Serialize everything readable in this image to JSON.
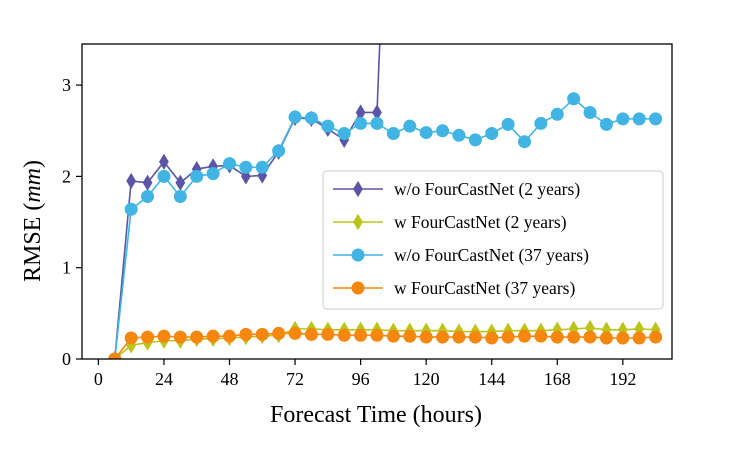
{
  "chart_data": {
    "type": "line",
    "xlabel": "Forecast Time (hours)",
    "ylabel_main": "RMSE (",
    "ylabel_unit": "mm",
    "ylabel_close": ")",
    "xlim": [
      -6,
      210
    ],
    "ylim": [
      0,
      3.45
    ],
    "xticks": [
      0,
      24,
      48,
      72,
      96,
      120,
      144,
      168,
      192
    ],
    "xtick_labels": [
      "0",
      "24",
      "48",
      "72",
      "96",
      "120",
      "144",
      "168",
      "192"
    ],
    "yticks": [
      0,
      1,
      2,
      3
    ],
    "ytick_labels": [
      "0",
      "1",
      "2",
      "3"
    ],
    "legend_position": "center-right",
    "series": [
      {
        "name": "w/o FourCastNet (2 years)",
        "color": "#5a55a6",
        "marker": "diamond",
        "x": [
          6,
          12,
          18,
          24,
          30,
          36,
          42,
          48,
          54,
          60,
          66,
          72,
          78,
          84,
          90,
          96,
          102,
          103
        ],
        "y": [
          0.0,
          1.95,
          1.93,
          2.16,
          1.93,
          2.08,
          2.11,
          2.12,
          2.0,
          2.01,
          2.27,
          2.64,
          2.63,
          2.52,
          2.4,
          2.7,
          2.7,
          3.45
        ],
        "markers_count": 17
      },
      {
        "name": "w FourCastNet (2 years)",
        "color": "#bcc418",
        "marker": "diamond",
        "x": [
          6,
          12,
          18,
          24,
          30,
          36,
          42,
          48,
          54,
          60,
          66,
          72,
          78,
          84,
          90,
          96,
          102,
          108,
          114,
          120,
          126,
          132,
          138,
          144,
          150,
          156,
          162,
          168,
          174,
          180,
          186,
          192,
          198,
          204
        ],
        "y": [
          0.0,
          0.15,
          0.18,
          0.2,
          0.2,
          0.22,
          0.22,
          0.23,
          0.24,
          0.25,
          0.26,
          0.33,
          0.33,
          0.32,
          0.32,
          0.32,
          0.32,
          0.31,
          0.31,
          0.31,
          0.31,
          0.3,
          0.3,
          0.3,
          0.31,
          0.31,
          0.31,
          0.32,
          0.33,
          0.34,
          0.32,
          0.32,
          0.33,
          0.32
        ]
      },
      {
        "name": "w/o FourCastNet (37 years)",
        "color": "#41b4e3",
        "marker": "circle",
        "x": [
          6,
          12,
          18,
          24,
          30,
          36,
          42,
          48,
          54,
          60,
          66,
          72,
          78,
          84,
          90,
          96,
          102,
          108,
          114,
          120,
          126,
          132,
          138,
          144,
          150,
          156,
          162,
          168,
          174,
          180,
          186,
          192,
          198,
          204
        ],
        "y": [
          0.0,
          1.64,
          1.78,
          2.0,
          1.78,
          2.0,
          2.03,
          2.14,
          2.1,
          2.1,
          2.28,
          2.65,
          2.64,
          2.55,
          2.47,
          2.58,
          2.58,
          2.47,
          2.55,
          2.48,
          2.5,
          2.45,
          2.4,
          2.47,
          2.57,
          2.38,
          2.58,
          2.68,
          2.85,
          2.7,
          2.57,
          2.63,
          2.63,
          2.63
        ]
      },
      {
        "name": "w FourCastNet (37 years)",
        "color": "#f5870f",
        "marker": "circle",
        "x": [
          6,
          12,
          18,
          24,
          30,
          36,
          42,
          48,
          54,
          60,
          66,
          72,
          78,
          84,
          90,
          96,
          102,
          108,
          114,
          120,
          126,
          132,
          138,
          144,
          150,
          156,
          162,
          168,
          174,
          180,
          186,
          192,
          198,
          204
        ],
        "y": [
          0.0,
          0.23,
          0.24,
          0.25,
          0.24,
          0.24,
          0.25,
          0.25,
          0.27,
          0.27,
          0.28,
          0.28,
          0.27,
          0.27,
          0.26,
          0.26,
          0.26,
          0.25,
          0.25,
          0.24,
          0.24,
          0.24,
          0.24,
          0.23,
          0.24,
          0.25,
          0.25,
          0.24,
          0.24,
          0.24,
          0.23,
          0.23,
          0.23,
          0.24
        ]
      }
    ]
  }
}
